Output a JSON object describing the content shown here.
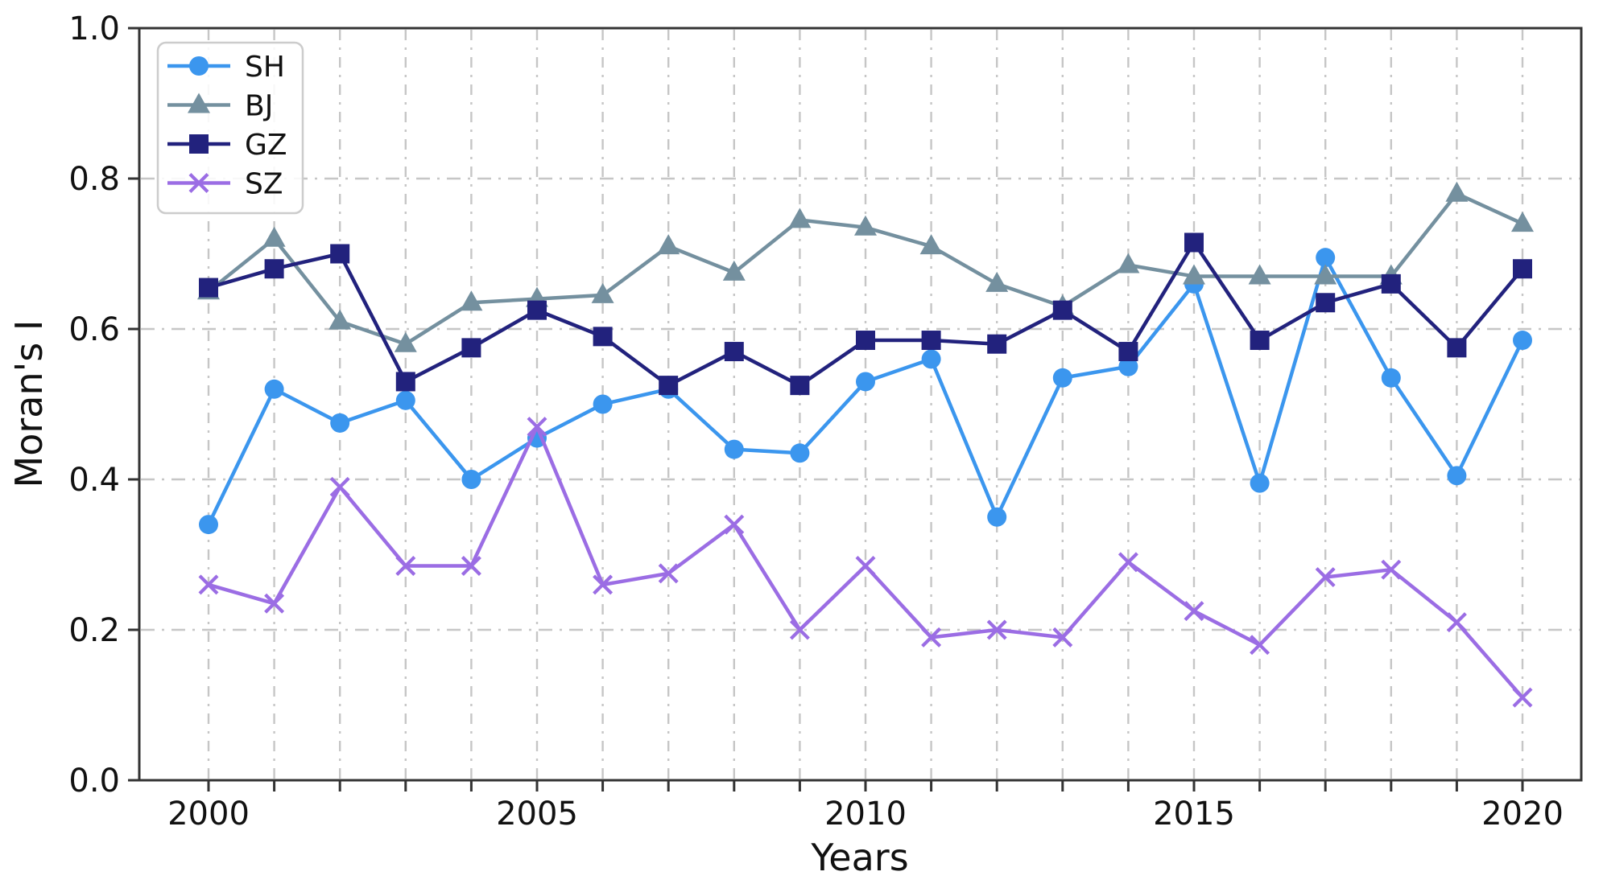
{
  "figure": {
    "background": "#ffffff",
    "text_color": "#111111",
    "spine_color": "#333333",
    "grid_color": "#c6c6c6"
  },
  "chart_data": {
    "type": "line",
    "title": "",
    "xlabel": "Years",
    "ylabel": "Moran's I",
    "x": [
      2000,
      2001,
      2002,
      2003,
      2004,
      2005,
      2006,
      2007,
      2008,
      2009,
      2010,
      2011,
      2012,
      2013,
      2014,
      2015,
      2016,
      2017,
      2018,
      2019,
      2020
    ],
    "xtick_labels": [
      "2000",
      "2005",
      "2010",
      "2015",
      "2020"
    ],
    "xtick_label_years": [
      2000,
      2005,
      2010,
      2015,
      2020
    ],
    "ytick_labels": [
      "0.0",
      "0.2",
      "0.4",
      "0.6",
      "0.8",
      "1.0"
    ],
    "ytick_values": [
      0.0,
      0.2,
      0.4,
      0.6,
      0.8,
      1.0
    ],
    "ylim": [
      0.0,
      1.0
    ],
    "grid": true,
    "grid_style": "dash-dot",
    "legend_position": "upper left",
    "series": [
      {
        "name": "SH",
        "color": "#3b96ee",
        "marker": "circle",
        "values": [
          0.34,
          0.52,
          0.475,
          0.505,
          0.4,
          0.455,
          0.5,
          0.52,
          0.44,
          0.435,
          0.53,
          0.56,
          0.35,
          0.535,
          0.55,
          0.66,
          0.395,
          0.695,
          0.535,
          0.405,
          0.585
        ]
      },
      {
        "name": "BJ",
        "color": "#74909f",
        "marker": "triangle",
        "values": [
          0.65,
          0.72,
          0.61,
          0.58,
          0.635,
          0.64,
          0.645,
          0.71,
          0.675,
          0.745,
          0.735,
          0.71,
          0.66,
          0.63,
          0.685,
          0.67,
          0.67,
          0.67,
          0.67,
          0.78,
          0.74
        ]
      },
      {
        "name": "GZ",
        "color": "#22227d",
        "marker": "square",
        "values": [
          0.655,
          0.68,
          0.7,
          0.53,
          0.575,
          0.625,
          0.59,
          0.525,
          0.57,
          0.525,
          0.585,
          0.585,
          0.58,
          0.625,
          0.57,
          0.715,
          0.585,
          0.635,
          0.66,
          0.575,
          0.68
        ]
      },
      {
        "name": "SZ",
        "color": "#9b6de4",
        "marker": "x",
        "values": [
          0.26,
          0.235,
          0.39,
          0.285,
          0.285,
          0.47,
          0.26,
          0.275,
          0.34,
          0.2,
          0.285,
          0.19,
          0.2,
          0.19,
          0.29,
          0.225,
          0.18,
          0.27,
          0.28,
          0.21,
          0.11
        ]
      }
    ]
  }
}
